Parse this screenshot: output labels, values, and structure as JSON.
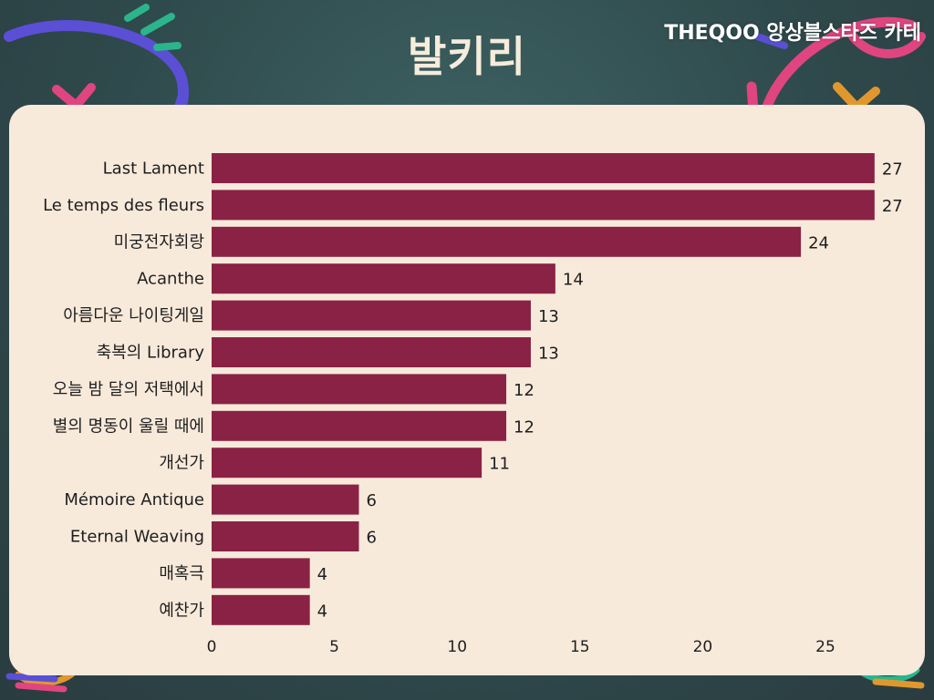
{
  "title": "발키리",
  "watermark": "THEQOO 앙상블스타즈 카테",
  "colors": {
    "background": "#2f4a4c",
    "panel": "#f8eadb",
    "bar": "#8a2245",
    "title_text": "#f6ecdc",
    "deco_purple": "#5b4fd6",
    "deco_pink": "#e0457f",
    "deco_green": "#2bb58c",
    "deco_orange": "#e0982e"
  },
  "chart_data": {
    "type": "bar",
    "orientation": "horizontal",
    "categories": [
      "Last Lament",
      "Le temps des fleurs",
      "미궁전자회랑",
      "Acanthe",
      "아름다운 나이팅게일",
      "축복의 Library",
      "오늘 밤 달의 저택에서",
      "별의 명동이 울릴 때에",
      "개선가",
      "Mémoire Antique",
      "Eternal Weaving",
      "매혹극",
      "예찬가"
    ],
    "values": [
      27,
      27,
      24,
      14,
      13,
      13,
      12,
      12,
      11,
      6,
      6,
      4,
      4
    ],
    "xticks": [
      0,
      5,
      10,
      15,
      20,
      25
    ],
    "xlim": [
      0,
      27.5
    ],
    "grid": false,
    "legend": "none",
    "data_labels": true
  }
}
